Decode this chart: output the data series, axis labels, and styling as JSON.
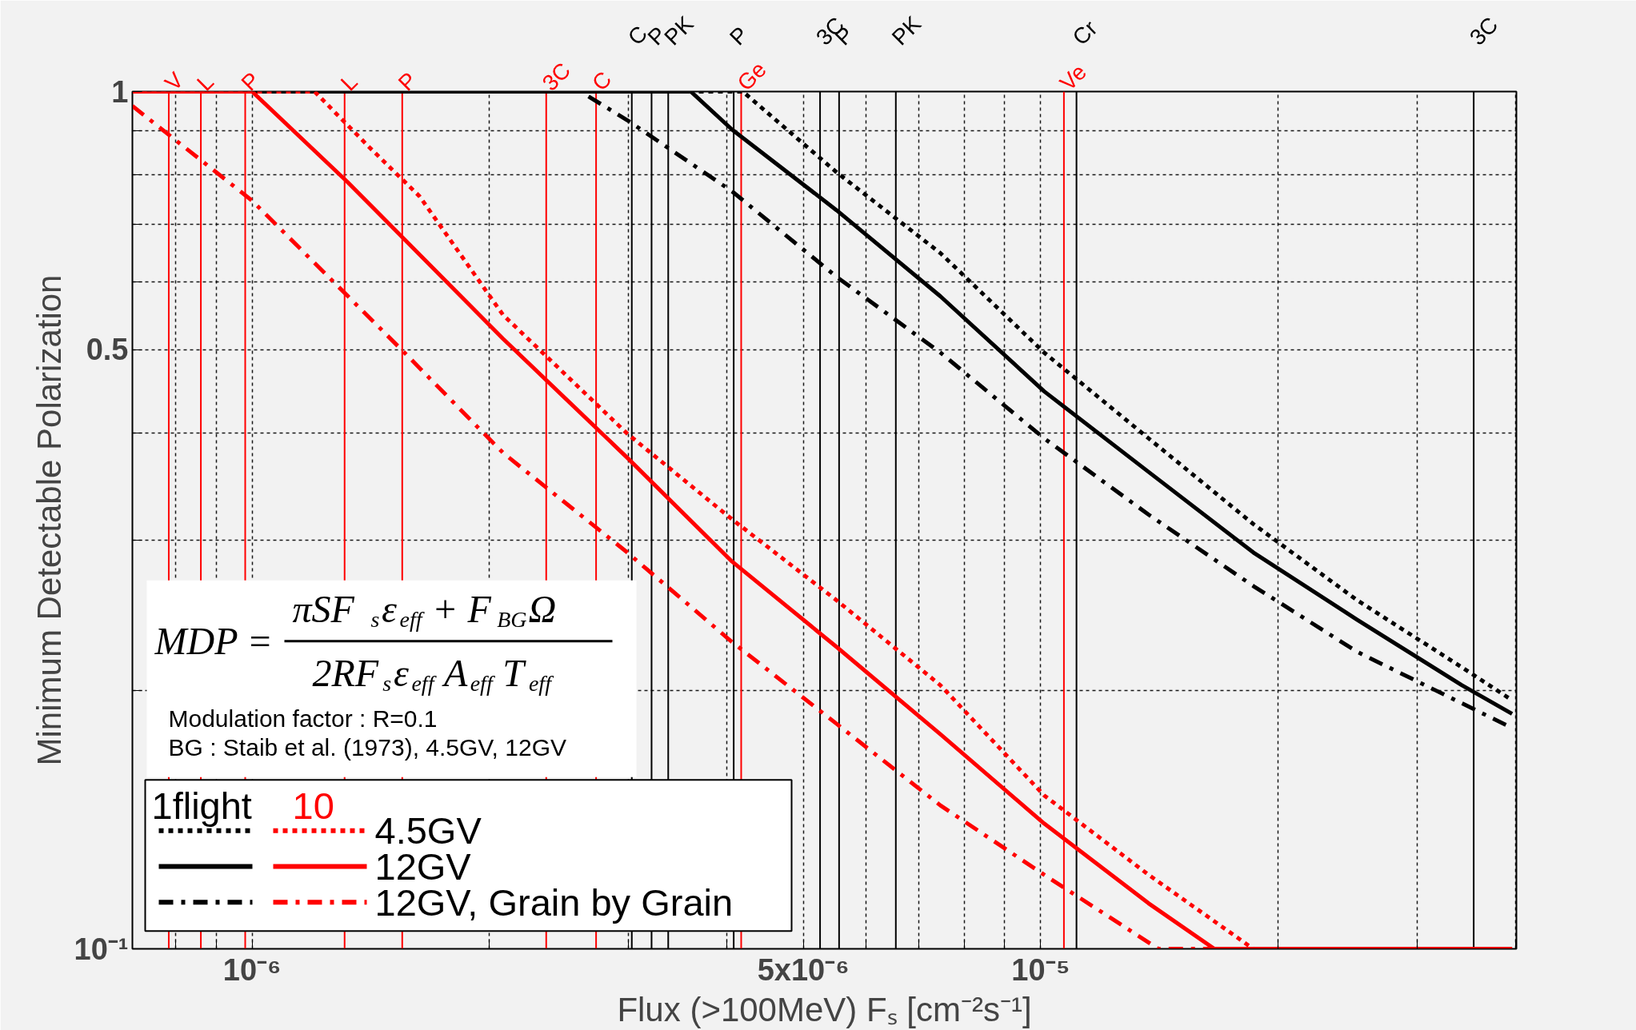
{
  "chart_data": {
    "type": "line",
    "log": "xy",
    "grid": true,
    "legend": "bottom left",
    "xlabel": "Flux (>100MeV) Fₛ [cm⁻²s⁻¹]",
    "ylabel": "Minimum Detectable Polarization",
    "xlim": [
      7.05e-07,
      4.01e-05
    ],
    "ylim": [
      0.1,
      1
    ],
    "xticks": [
      {
        "value": 8e-07,
        "label": null
      },
      {
        "value": 9e-07,
        "label": null
      },
      {
        "value": 1e-06,
        "label": "10⁻⁶"
      },
      {
        "value": 2e-06,
        "label": null
      },
      {
        "value": 3e-06,
        "label": null
      },
      {
        "value": 4e-06,
        "label": null
      },
      {
        "value": 5e-06,
        "label": "5x10⁻⁶"
      },
      {
        "value": 6e-06,
        "label": null
      },
      {
        "value": 7e-06,
        "label": null
      },
      {
        "value": 8e-06,
        "label": null
      },
      {
        "value": 9e-06,
        "label": null
      },
      {
        "value": 1e-05,
        "label": "10⁻⁵"
      },
      {
        "value": 2e-05,
        "label": null
      },
      {
        "value": 3e-05,
        "label": null
      },
      {
        "value": 4e-05,
        "label": null
      }
    ],
    "yticks": [
      {
        "value": 0.1,
        "label": "10⁻¹"
      },
      {
        "value": 0.2,
        "label": null
      },
      {
        "value": 0.3,
        "label": null
      },
      {
        "value": 0.4,
        "label": null
      },
      0.5,
      {
        "value": 0.6,
        "label": null
      },
      {
        "value": 0.7,
        "label": null
      },
      {
        "value": 0.8,
        "label": null
      },
      {
        "value": 0.9,
        "label": null
      },
      1
    ],
    "series": [
      {
        "color": "#000000",
        "line_style": "dotted",
        "x": [
          7.05e-07,
          4.19e-06,
          5.51e-06,
          7.46e-06,
          1.01e-05,
          1.37e-05,
          1.86e-05,
          2.52e-05,
          3.42e-05,
          3.96e-05
        ],
        "values": [
          1,
          1,
          0.805,
          0.648,
          0.496,
          0.394,
          0.313,
          0.255,
          0.213,
          0.195
        ]
      },
      {
        "color": "#000000",
        "line_style": "solid",
        "x": [
          7.05e-07,
          3.6e-06,
          4.06e-06,
          5.51e-06,
          7.46e-06,
          1.01e-05,
          1.37e-05,
          1.86e-05,
          2.52e-05,
          3.42e-05,
          3.96e-05
        ],
        "values": [
          1,
          1,
          0.903,
          0.727,
          0.577,
          0.447,
          0.36,
          0.29,
          0.242,
          0.203,
          0.188
        ]
      },
      {
        "color": "#000000",
        "line_style": "dashdot",
        "x": [
          2.67e-06,
          2.99e-06,
          4.06e-06,
          5.51e-06,
          7.46e-06,
          1.01e-05,
          1.37e-05,
          1.86e-05,
          2.52e-05,
          3.96e-05
        ],
        "values": [
          0.987,
          0.926,
          0.765,
          0.608,
          0.496,
          0.394,
          0.321,
          0.265,
          0.222,
          0.181
        ]
      },
      {
        "name": "4.5GV",
        "color": "#ff0000",
        "line_style": "dotted",
        "x": [
          7.05e-07,
          1.2e-06,
          1.41e-06,
          1.63e-06,
          2.08e-06,
          2.99e-06,
          4.06e-06,
          5.51e-06,
          7.46e-06,
          1.01e-05,
          1.37e-05,
          1.86e-05,
          3.96e-05
        ],
        "values": [
          1,
          1,
          0.86,
          0.755,
          0.549,
          0.399,
          0.317,
          0.255,
          0.203,
          0.151,
          0.122,
          0.1,
          0.1
        ]
      },
      {
        "name": "12GV",
        "color": "#ff0000",
        "line_style": "solid",
        "x": [
          7.05e-07,
          1e-06,
          1.32e-06,
          2.08e-06,
          2.99e-06,
          4.06e-06,
          5.51e-06,
          7.46e-06,
          1.01e-05,
          1.37e-05,
          1.66e-05,
          3.96e-05
        ],
        "values": [
          1,
          1,
          0.785,
          0.515,
          0.374,
          0.283,
          0.225,
          0.178,
          0.14,
          0.113,
          0.1,
          0.1
        ]
      },
      {
        "name": "12GV, Grain by Grain",
        "color": "#ff0000",
        "line_style": "dashdot",
        "x": [
          7.05e-07,
          1e-06,
          1.56e-06,
          2.08e-06,
          2.99e-06,
          4.06e-06,
          5.51e-06,
          7.46e-06,
          1.01e-05,
          1.41e-05,
          3.96e-05
        ],
        "values": [
          0.962,
          0.746,
          0.496,
          0.379,
          0.29,
          0.228,
          0.183,
          0.147,
          0.122,
          0.1,
          0.1
        ]
      }
    ],
    "ref_lines": [
      {
        "axis": "x",
        "value": 7.84e-07,
        "label": "V",
        "color": "#ff0000"
      },
      {
        "axis": "x",
        "value": 8.61e-07,
        "label": "L",
        "color": "#ff0000"
      },
      {
        "axis": "x",
        "value": 9.8e-07,
        "label": "P",
        "color": "#ff0000"
      },
      {
        "axis": "x",
        "value": 1.31e-06,
        "label": "L",
        "color": "#ff0000"
      },
      {
        "axis": "x",
        "value": 1.55e-06,
        "label": "P",
        "color": "#ff0000"
      },
      {
        "axis": "x",
        "value": 2.36e-06,
        "label": "3C",
        "color": "#ff0000"
      },
      {
        "axis": "x",
        "value": 2.73e-06,
        "label": "C",
        "color": "#ff0000"
      },
      {
        "axis": "x",
        "value": 3.03e-06,
        "label": "C",
        "color": "#000000"
      },
      {
        "axis": "x",
        "value": 3.21e-06,
        "label": "P",
        "color": "#000000"
      },
      {
        "axis": "x",
        "value": 3.37e-06,
        "label": "PK",
        "color": "#000000"
      },
      {
        "axis": "x",
        "value": 4.08e-06,
        "label": "P",
        "color": "#000000"
      },
      {
        "axis": "x",
        "value": 4.17e-06,
        "label": "Ge",
        "color": "#ff0000"
      },
      {
        "axis": "x",
        "value": 5.25e-06,
        "label": "3C",
        "color": "#000000"
      },
      {
        "axis": "x",
        "value": 5.55e-06,
        "label": "P",
        "color": "#000000"
      },
      {
        "axis": "x",
        "value": 6.55e-06,
        "label": "PK",
        "color": "#000000"
      },
      {
        "axis": "x",
        "value": 1.07e-05,
        "label": "Ve",
        "color": "#ff0000"
      },
      {
        "axis": "x",
        "value": 1.11e-05,
        "label": "Cr",
        "color": "#000000"
      },
      {
        "axis": "x",
        "value": 3.54e-05,
        "label": "3C",
        "color": "#000000"
      }
    ],
    "annotations": [
      "MDP =",
      "πSF$_{s}$ε$_{eff}$ + F$_{BG}$Ω",
      "2RF$_{s}$ε$_{eff}$A$_{eff}$T$_{eff}$",
      "Modulation factor : R=0.1",
      "BG : Staib et al. (1973), 4.5GV, 12GV",
      "1flight",
      "10"
    ]
  }
}
